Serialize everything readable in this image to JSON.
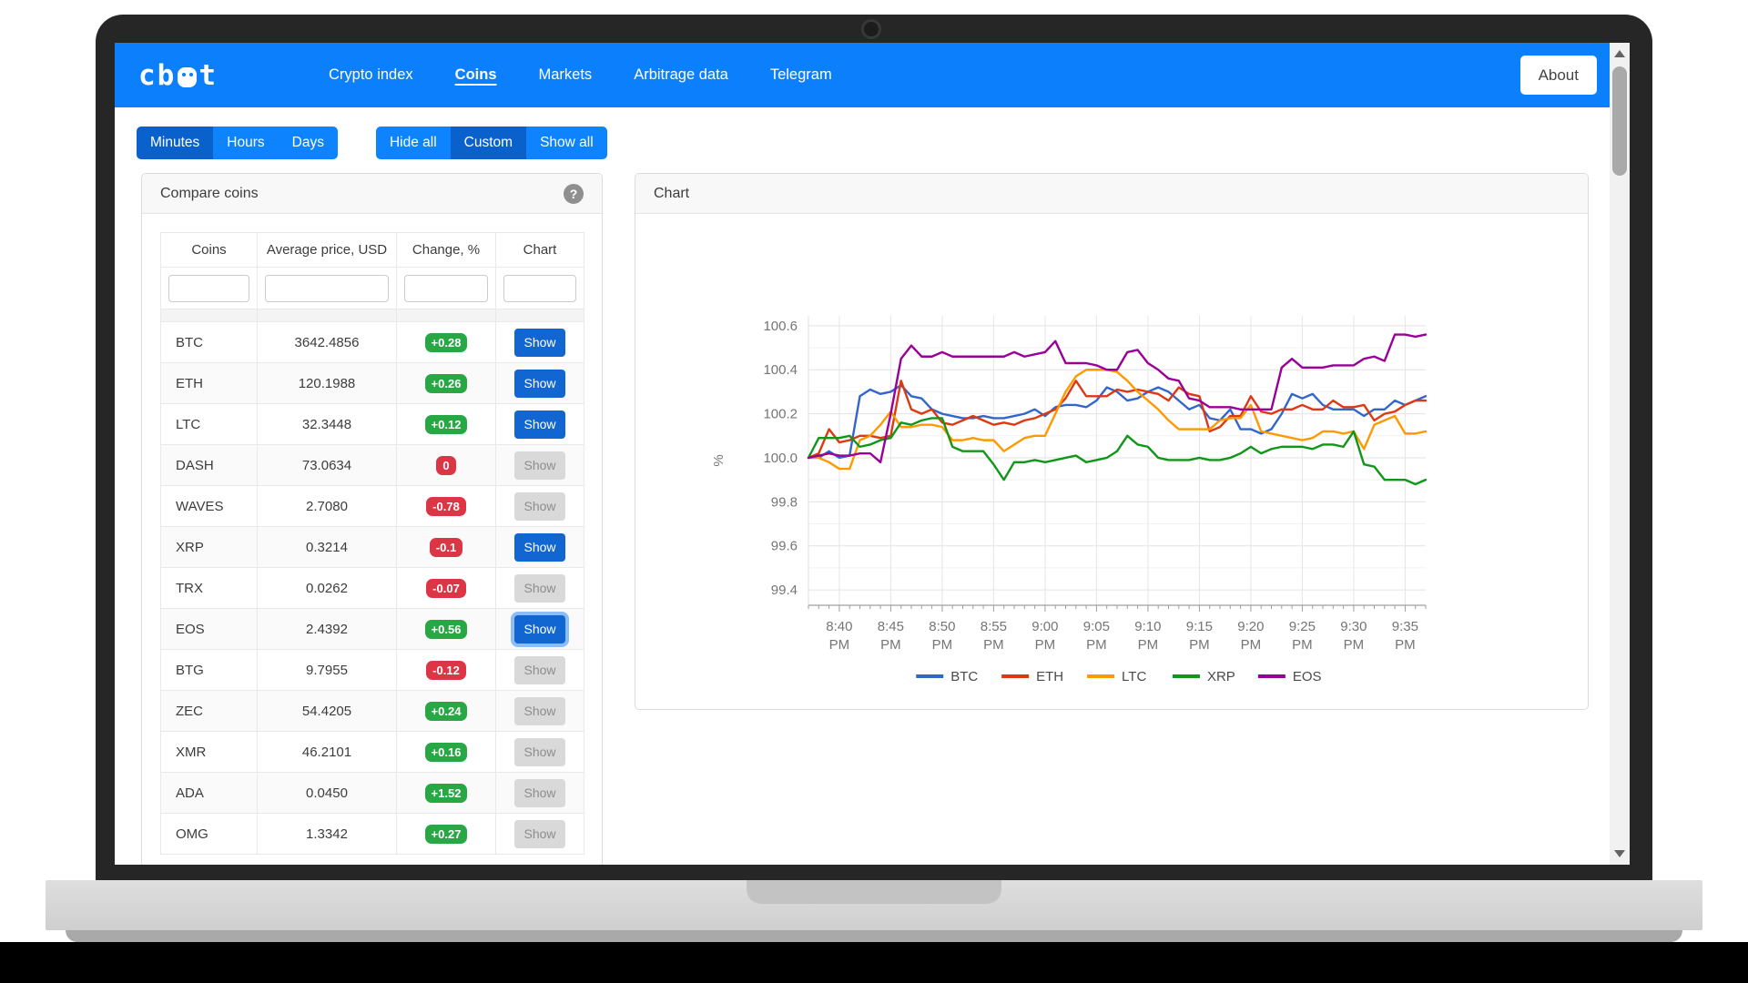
{
  "window": {
    "about_label": "About"
  },
  "navbar": {
    "logo": "cbot",
    "items": [
      {
        "label": "Crypto index",
        "active": false
      },
      {
        "label": "Coins",
        "active": true
      },
      {
        "label": "Markets",
        "active": false
      },
      {
        "label": "Arbitrage data",
        "active": false
      },
      {
        "label": "Telegram",
        "active": false
      }
    ]
  },
  "timeframe_toggle": {
    "items": [
      {
        "label": "Minutes",
        "active": true
      },
      {
        "label": "Hours",
        "active": false
      },
      {
        "label": "Days",
        "active": false
      }
    ]
  },
  "visibility_toggle": {
    "items": [
      {
        "label": "Hide all",
        "active": false
      },
      {
        "label": "Custom",
        "active": true
      },
      {
        "label": "Show all",
        "active": false
      }
    ]
  },
  "colors": {
    "navbar_blue": "#0b7ffc",
    "toggle_active_blue": "#0a61cc",
    "primary_button_blue": "#1266d1",
    "badge_green": "#28a745",
    "badge_red": "#dc3545"
  },
  "compare_panel": {
    "title": "Compare coins",
    "help_icon": "?",
    "columns": [
      "Coins",
      "Average price, USD",
      "Change, %",
      "Chart"
    ],
    "show_label": "Show",
    "rows": [
      {
        "coin": "BTC",
        "price": "3642.4856",
        "change": "+0.28",
        "badge": "green",
        "show_variant": "primary",
        "focused": false
      },
      {
        "coin": "ETH",
        "price": "120.1988",
        "change": "+0.26",
        "badge": "green",
        "show_variant": "primary",
        "focused": false
      },
      {
        "coin": "LTC",
        "price": "32.3448",
        "change": "+0.12",
        "badge": "green",
        "show_variant": "primary",
        "focused": false
      },
      {
        "coin": "DASH",
        "price": "73.0634",
        "change": "0",
        "badge": "red",
        "show_variant": "default",
        "focused": false
      },
      {
        "coin": "WAVES",
        "price": "2.7080",
        "change": "-0.78",
        "badge": "red",
        "show_variant": "default",
        "focused": false
      },
      {
        "coin": "XRP",
        "price": "0.3214",
        "change": "-0.1",
        "badge": "red",
        "show_variant": "primary",
        "focused": false
      },
      {
        "coin": "TRX",
        "price": "0.0262",
        "change": "-0.07",
        "badge": "red",
        "show_variant": "default",
        "focused": false
      },
      {
        "coin": "EOS",
        "price": "2.4392",
        "change": "+0.56",
        "badge": "green",
        "show_variant": "primary",
        "focused": true
      },
      {
        "coin": "BTG",
        "price": "9.7955",
        "change": "-0.12",
        "badge": "red",
        "show_variant": "default",
        "focused": false
      },
      {
        "coin": "ZEC",
        "price": "54.4205",
        "change": "+0.24",
        "badge": "green",
        "show_variant": "default",
        "focused": false
      },
      {
        "coin": "XMR",
        "price": "46.2101",
        "change": "+0.16",
        "badge": "green",
        "show_variant": "default",
        "focused": false
      },
      {
        "coin": "ADA",
        "price": "0.0450",
        "change": "+1.52",
        "badge": "green",
        "show_variant": "default",
        "focused": false
      },
      {
        "coin": "OMG",
        "price": "1.3342",
        "change": "+0.27",
        "badge": "green",
        "show_variant": "default",
        "focused": false
      }
    ]
  },
  "chart_panel": {
    "title": "Chart"
  },
  "chart_data": {
    "type": "line",
    "ylabel": "%",
    "ylim": [
      99.4,
      100.6
    ],
    "y_tick_step": 0.2,
    "x_start": "8:37 PM",
    "x_interval_minutes": 1,
    "first_tick_index": 3,
    "tick_every": 5,
    "x_tick_labels": [
      "8:40 PM",
      "8:45 PM",
      "8:50 PM",
      "8:55 PM",
      "9:00 PM",
      "9:05 PM",
      "9:10 PM",
      "9:15 PM",
      "9:20 PM",
      "9:25 PM",
      "9:30 PM",
      "9:35 PM"
    ],
    "grid": true,
    "legend_position": "bottom",
    "series": [
      {
        "name": "BTC",
        "color": "#3366cc",
        "values": [
          100.0,
          100.0,
          100.03,
          100.0,
          100.01,
          100.28,
          100.31,
          100.29,
          100.3,
          100.33,
          100.28,
          100.27,
          100.22,
          100.2,
          100.19,
          100.18,
          100.18,
          100.19,
          100.18,
          100.18,
          100.19,
          100.2,
          100.22,
          100.19,
          100.23,
          100.24,
          100.24,
          100.23,
          100.26,
          100.32,
          100.3,
          100.26,
          100.27,
          100.3,
          100.32,
          100.3,
          100.26,
          100.22,
          100.24,
          100.18,
          100.17,
          100.22,
          100.13,
          100.13,
          100.11,
          100.13,
          100.2,
          100.29,
          100.27,
          100.29,
          100.24,
          100.22,
          100.22,
          100.22,
          100.19,
          100.22,
          100.22,
          100.26,
          100.24,
          100.26,
          100.28
        ]
      },
      {
        "name": "ETH",
        "color": "#dc3912",
        "values": [
          100.0,
          100.02,
          100.13,
          100.07,
          100.08,
          100.1,
          100.1,
          100.09,
          100.1,
          100.35,
          100.22,
          100.2,
          100.22,
          100.16,
          100.15,
          100.17,
          100.19,
          100.17,
          100.15,
          100.16,
          100.15,
          100.17,
          100.18,
          100.2,
          100.22,
          100.27,
          100.35,
          100.28,
          100.28,
          100.28,
          100.31,
          100.3,
          100.31,
          100.3,
          100.29,
          100.26,
          100.32,
          100.29,
          100.28,
          100.12,
          100.14,
          100.19,
          100.19,
          100.28,
          100.21,
          100.2,
          100.22,
          100.22,
          100.24,
          100.22,
          100.22,
          100.26,
          100.23,
          100.23,
          100.24,
          100.17,
          100.2,
          100.21,
          100.24,
          100.26,
          100.26
        ]
      },
      {
        "name": "LTC",
        "color": "#ff9900",
        "values": [
          100.0,
          100.0,
          99.98,
          99.95,
          99.95,
          100.08,
          100.1,
          100.15,
          100.21,
          100.14,
          100.14,
          100.15,
          100.15,
          100.14,
          100.08,
          100.08,
          100.09,
          100.08,
          100.08,
          100.03,
          100.06,
          100.09,
          100.1,
          100.1,
          100.2,
          100.3,
          100.37,
          100.4,
          100.4,
          100.4,
          100.39,
          100.35,
          100.3,
          100.26,
          100.22,
          100.17,
          100.13,
          100.13,
          100.13,
          100.13,
          100.17,
          100.18,
          100.18,
          100.24,
          100.12,
          100.11,
          100.1,
          100.09,
          100.08,
          100.09,
          100.12,
          100.12,
          100.11,
          100.12,
          100.04,
          100.15,
          100.17,
          100.19,
          100.11,
          100.11,
          100.12
        ]
      },
      {
        "name": "XRP",
        "color": "#109618",
        "values": [
          100.0,
          100.09,
          100.09,
          100.09,
          100.1,
          100.05,
          100.06,
          100.08,
          100.09,
          100.16,
          100.15,
          100.17,
          100.18,
          100.18,
          100.05,
          100.03,
          100.03,
          100.03,
          99.97,
          99.9,
          99.98,
          99.98,
          99.99,
          99.98,
          99.99,
          100.0,
          100.01,
          99.98,
          99.99,
          100.0,
          100.03,
          100.1,
          100.06,
          100.05,
          100.0,
          99.99,
          99.99,
          99.99,
          100.0,
          99.99,
          99.99,
          100.0,
          100.02,
          100.05,
          100.02,
          100.04,
          100.05,
          100.05,
          100.05,
          100.04,
          100.06,
          100.06,
          100.05,
          100.12,
          99.97,
          99.96,
          99.9,
          99.9,
          99.9,
          99.88,
          99.9
        ]
      },
      {
        "name": "EOS",
        "color": "#990099",
        "values": [
          100.0,
          100.01,
          100.02,
          100.01,
          100.01,
          100.02,
          100.02,
          99.98,
          100.2,
          100.45,
          100.51,
          100.46,
          100.46,
          100.48,
          100.46,
          100.46,
          100.46,
          100.46,
          100.46,
          100.46,
          100.48,
          100.46,
          100.47,
          100.48,
          100.53,
          100.43,
          100.43,
          100.43,
          100.42,
          100.4,
          100.4,
          100.48,
          100.49,
          100.43,
          100.4,
          100.36,
          100.35,
          100.27,
          100.26,
          100.23,
          100.23,
          100.23,
          100.22,
          100.22,
          100.22,
          100.22,
          100.41,
          100.45,
          100.41,
          100.41,
          100.41,
          100.42,
          100.42,
          100.42,
          100.45,
          100.46,
          100.44,
          100.56,
          100.56,
          100.55,
          100.56
        ]
      }
    ]
  }
}
